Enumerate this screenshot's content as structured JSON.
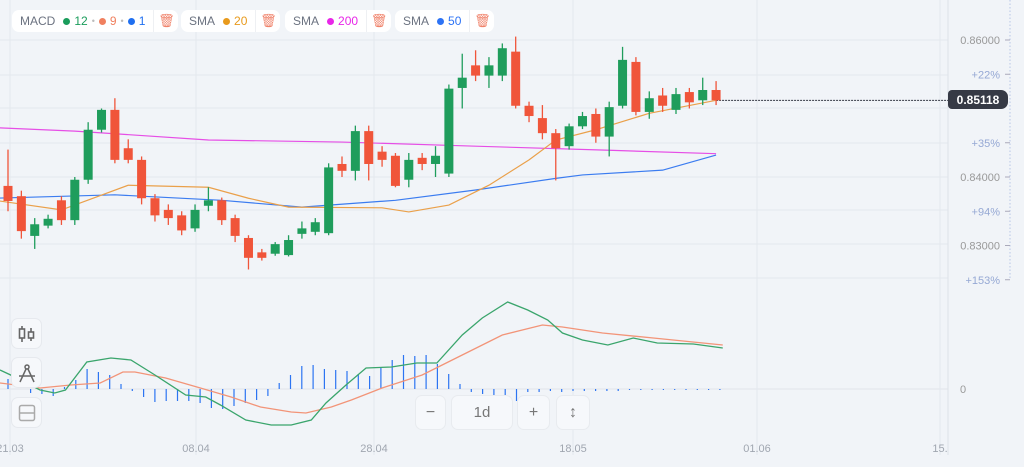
{
  "legend": {
    "macd": {
      "label": "MACD",
      "fast": "12",
      "slow": "9",
      "signal": "1",
      "colors": [
        "#1a9c5b",
        "#f0805f",
        "#1f6ff0"
      ]
    },
    "sma1": {
      "label": "SMA",
      "period": "20",
      "color": "#e89a1c"
    },
    "sma2": {
      "label": "SMA",
      "period": "200",
      "color": "#e826e8"
    },
    "sma3": {
      "label": "SMA",
      "period": "50",
      "color": "#2d73f5"
    }
  },
  "current_price": "0.85118",
  "controls": {
    "zoom_out": "−",
    "interval": "1d",
    "zoom_in": "+"
  },
  "chart_data": {
    "type": "candlestick",
    "price_axis": {
      "ticks": [
        "0.86000",
        "0.84000",
        "0.83000"
      ],
      "tick_values": [
        0.86,
        0.84,
        0.83
      ],
      "percent_labels": [
        "+22%",
        "+35%",
        "+94%",
        "+153%"
      ],
      "percent_values": [
        0.855,
        0.845,
        0.835,
        0.825
      ]
    },
    "x_labels": [
      "21.03",
      "08.04",
      "28.04",
      "18.05",
      "01.06",
      "15."
    ],
    "candles": [
      [
        0.8387,
        0.844,
        0.835,
        0.8365
      ],
      [
        0.8372,
        0.838,
        0.831,
        0.8321
      ],
      [
        0.8314,
        0.834,
        0.8295,
        0.8331
      ],
      [
        0.8329,
        0.8345,
        0.8325,
        0.8339
      ],
      [
        0.8366,
        0.8372,
        0.833,
        0.8337
      ],
      [
        0.8337,
        0.84,
        0.833,
        0.8396
      ],
      [
        0.8396,
        0.848,
        0.839,
        0.8469
      ],
      [
        0.8469,
        0.85,
        0.8465,
        0.8498
      ],
      [
        0.8498,
        0.8515,
        0.842,
        0.8425
      ],
      [
        0.8442,
        0.8455,
        0.842,
        0.8425
      ],
      [
        0.8425,
        0.843,
        0.836,
        0.8369
      ],
      [
        0.8369,
        0.8375,
        0.8335,
        0.8344
      ],
      [
        0.8352,
        0.836,
        0.833,
        0.834
      ],
      [
        0.8344,
        0.835,
        0.8315,
        0.8322
      ],
      [
        0.8325,
        0.836,
        0.832,
        0.8352
      ],
      [
        0.8358,
        0.8385,
        0.835,
        0.8366
      ],
      [
        0.8366,
        0.837,
        0.833,
        0.8337
      ],
      [
        0.834,
        0.8345,
        0.8305,
        0.8314
      ],
      [
        0.8311,
        0.8315,
        0.8265,
        0.8282
      ],
      [
        0.829,
        0.8295,
        0.8278,
        0.8282
      ],
      [
        0.8288,
        0.8305,
        0.8285,
        0.8302
      ],
      [
        0.8286,
        0.8315,
        0.8284,
        0.8308
      ],
      [
        0.8317,
        0.8335,
        0.831,
        0.8325
      ],
      [
        0.832,
        0.834,
        0.8315,
        0.8334
      ],
      [
        0.8318,
        0.842,
        0.8315,
        0.8414
      ],
      [
        0.8419,
        0.843,
        0.84,
        0.8409
      ],
      [
        0.8409,
        0.8475,
        0.8395,
        0.8467
      ],
      [
        0.8467,
        0.8475,
        0.8395,
        0.8419
      ],
      [
        0.8437,
        0.8445,
        0.8415,
        0.8425
      ],
      [
        0.8431,
        0.8435,
        0.8385,
        0.8387
      ],
      [
        0.8396,
        0.8435,
        0.8385,
        0.8425
      ],
      [
        0.8428,
        0.8435,
        0.841,
        0.8419
      ],
      [
        0.8419,
        0.8445,
        0.84,
        0.8431
      ],
      [
        0.8405,
        0.8535,
        0.84,
        0.8529
      ],
      [
        0.853,
        0.858,
        0.85,
        0.8545
      ],
      [
        0.8563,
        0.8585,
        0.854,
        0.8548
      ],
      [
        0.8548,
        0.8575,
        0.853,
        0.8563
      ],
      [
        0.8548,
        0.8595,
        0.854,
        0.8588
      ],
      [
        0.8583,
        0.8605,
        0.85,
        0.8504
      ],
      [
        0.8504,
        0.851,
        0.848,
        0.8489
      ],
      [
        0.8486,
        0.8505,
        0.8455,
        0.8464
      ],
      [
        0.8464,
        0.847,
        0.8395,
        0.8442
      ],
      [
        0.8445,
        0.8478,
        0.844,
        0.8474
      ],
      [
        0.8474,
        0.8495,
        0.847,
        0.8489
      ],
      [
        0.8492,
        0.85,
        0.845,
        0.8459
      ],
      [
        0.8459,
        0.851,
        0.843,
        0.8502
      ],
      [
        0.8504,
        0.859,
        0.85,
        0.8571
      ],
      [
        0.8568,
        0.8575,
        0.849,
        0.8495
      ],
      [
        0.8495,
        0.8525,
        0.8485,
        0.8515
      ],
      [
        0.8519,
        0.853,
        0.8495,
        0.8504
      ],
      [
        0.8498,
        0.853,
        0.8492,
        0.8521
      ],
      [
        0.8524,
        0.853,
        0.85,
        0.8509
      ],
      [
        0.8512,
        0.8545,
        0.8505,
        0.8527
      ],
      [
        0.8527,
        0.854,
        0.8505,
        0.8512
      ]
    ],
    "sma20": [
      [
        -1,
        0.8366
      ],
      [
        4,
        0.8352
      ],
      [
        9,
        0.8388
      ],
      [
        15,
        0.8385
      ],
      [
        18,
        0.8369
      ],
      [
        21,
        0.8356
      ],
      [
        28,
        0.8355
      ],
      [
        30,
        0.8349
      ],
      [
        33,
        0.8359
      ],
      [
        36,
        0.8388
      ],
      [
        39,
        0.8425
      ],
      [
        41,
        0.8454
      ],
      [
        44,
        0.8469
      ],
      [
        48,
        0.8493
      ],
      [
        53,
        0.8512
      ]
    ],
    "sma50": [
      [
        -1,
        0.8369
      ],
      [
        8,
        0.8374
      ],
      [
        16,
        0.8366
      ],
      [
        22,
        0.8356
      ],
      [
        29,
        0.8366
      ],
      [
        35,
        0.8381
      ],
      [
        41,
        0.8398
      ],
      [
        43,
        0.8403
      ],
      [
        49,
        0.841
      ],
      [
        53,
        0.8432
      ]
    ],
    "sma200": [
      [
        -1,
        0.8472
      ],
      [
        5,
        0.8467
      ],
      [
        15,
        0.8454
      ],
      [
        25,
        0.8451
      ],
      [
        35,
        0.8445
      ],
      [
        45,
        0.8439
      ],
      [
        53,
        0.8434
      ]
    ],
    "macd_axis": {
      "zero_label": "0"
    },
    "macd_line": [
      [
        -0.6,
        19
      ],
      [
        0.2,
        14
      ],
      [
        2.4,
        -1
      ],
      [
        3.5,
        -4
      ],
      [
        4.3,
        -1
      ],
      [
        5.9,
        27
      ],
      [
        7.7,
        31
      ],
      [
        9.2,
        29
      ],
      [
        11,
        14
      ],
      [
        13.3,
        -6
      ],
      [
        14.8,
        -8
      ],
      [
        15.9,
        -16
      ],
      [
        17.8,
        -31
      ],
      [
        19.7,
        -36
      ],
      [
        21.2,
        -36
      ],
      [
        22.7,
        -31
      ],
      [
        23.8,
        -14
      ],
      [
        25.3,
        4
      ],
      [
        26.8,
        21
      ],
      [
        28.7,
        22
      ],
      [
        30.6,
        26
      ],
      [
        32.1,
        26
      ],
      [
        34,
        54
      ],
      [
        35.5,
        71
      ],
      [
        37.4,
        87
      ],
      [
        38.9,
        79
      ],
      [
        40.4,
        69
      ],
      [
        41.5,
        56
      ],
      [
        43,
        49
      ],
      [
        44.9,
        44
      ],
      [
        46.8,
        51
      ],
      [
        48.6,
        46
      ],
      [
        51.3,
        45
      ],
      [
        53.5,
        41
      ]
    ],
    "signal_line": [
      [
        -0.6,
        6
      ],
      [
        2.4,
        1
      ],
      [
        4.7,
        4
      ],
      [
        6.9,
        6
      ],
      [
        8.6,
        17
      ],
      [
        9.5,
        17
      ],
      [
        11.8,
        11
      ],
      [
        14.4,
        1
      ],
      [
        16.7,
        -8
      ],
      [
        18.9,
        -18
      ],
      [
        21.2,
        -23
      ],
      [
        22.3,
        -24
      ],
      [
        24.2,
        -18
      ],
      [
        25.7,
        -11
      ],
      [
        28,
        1
      ],
      [
        31,
        14
      ],
      [
        34,
        34
      ],
      [
        37,
        54
      ],
      [
        40,
        64
      ],
      [
        41.5,
        62
      ],
      [
        44.5,
        56
      ],
      [
        48.3,
        51
      ],
      [
        53.5,
        44
      ]
    ],
    "histogram": [
      10,
      0,
      -4,
      -5,
      -7,
      2,
      9,
      20,
      17,
      14,
      5,
      -2,
      -8,
      -13,
      -12,
      -12,
      -12,
      -14,
      -19,
      -20,
      -17,
      -14,
      -11,
      -7,
      6,
      14,
      23,
      24,
      20,
      19,
      18,
      15,
      13,
      22,
      29,
      34,
      33,
      34,
      25,
      15,
      5,
      -3,
      -5,
      -7,
      -10,
      -12,
      -3,
      -3,
      -2,
      -3,
      -2,
      -2,
      -2,
      -2,
      -2,
      -1,
      -1,
      -1,
      -1,
      -1,
      -1,
      -1,
      -1,
      -1
    ]
  }
}
